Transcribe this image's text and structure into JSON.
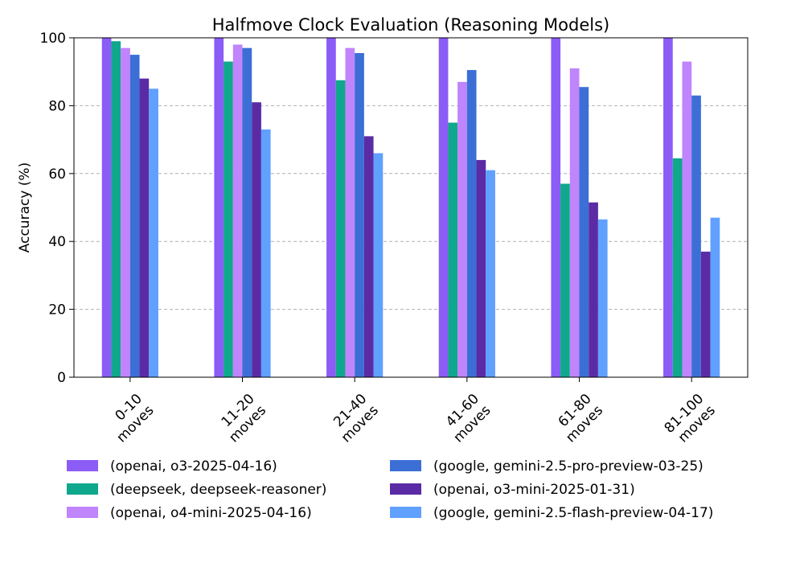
{
  "chart_data": {
    "type": "bar",
    "title": "Halfmove Clock Evaluation (Reasoning Models)",
    "xlabel": "",
    "ylabel": "Accuracy (%)",
    "ylim": [
      0,
      100
    ],
    "yticks": [
      0,
      20,
      40,
      60,
      80,
      100
    ],
    "grid": "y-dashed",
    "legend_position": "bottom",
    "categories": [
      [
        "0-10",
        "moves"
      ],
      [
        "11-20",
        "moves"
      ],
      [
        "21-40",
        "moves"
      ],
      [
        "41-60",
        "moves"
      ],
      [
        "61-80",
        "moves"
      ],
      [
        "81-100",
        "moves"
      ]
    ],
    "series": [
      {
        "name": "(openai, o3-2025-04-16)",
        "color": "#8b5cf6",
        "values": [
          100,
          100,
          100,
          100,
          100,
          100
        ]
      },
      {
        "name": "(deepseek, deepseek-reasoner)",
        "color": "#0fa88c",
        "values": [
          99,
          93,
          87.5,
          75,
          57,
          64.5
        ]
      },
      {
        "name": "(openai, o4-mini-2025-04-16)",
        "color": "#c084fc",
        "values": [
          97,
          98,
          97,
          87,
          91,
          93
        ]
      },
      {
        "name": "(google, gemini-2.5-pro-preview-03-25)",
        "color": "#3b6fd6",
        "values": [
          95,
          97,
          95.5,
          90.5,
          85.5,
          83
        ]
      },
      {
        "name": "(openai, o3-mini-2025-01-31)",
        "color": "#5b2ba5",
        "values": [
          88,
          81,
          71,
          64,
          51.5,
          37
        ]
      },
      {
        "name": "(google, gemini-2.5-flash-preview-04-17)",
        "color": "#60a0ff",
        "values": [
          85,
          73,
          66,
          61,
          46.5,
          47
        ]
      }
    ]
  }
}
